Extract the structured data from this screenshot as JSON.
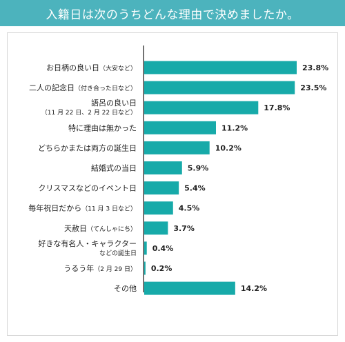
{
  "header": {
    "title": "入籍日は次のうちどんな理由で決めましたか。"
  },
  "colors": {
    "header_bg": "#4cb3bd",
    "bar": "#17aaa9",
    "axis": "#444444"
  },
  "chart_data": {
    "type": "bar",
    "orientation": "horizontal",
    "title": "入籍日は次のうちどんな理由で決めましたか。",
    "categories": [
      {
        "main": "お日柄の良い日",
        "note": "（大安など）"
      },
      {
        "main": "二人の記念日",
        "note": "（付き合った日など）"
      },
      {
        "main": "語呂の良い日",
        "sub": "（11 月 22 日、2 月 22 日など）"
      },
      {
        "main": "特に理由は無かった"
      },
      {
        "main": "どちらかまたは両方の誕生日"
      },
      {
        "main": "結婚式の当日"
      },
      {
        "main": "クリスマスなどのイベント日"
      },
      {
        "main": "毎年祝日だから",
        "note": "（11 月 3 日など）"
      },
      {
        "main": "天赦日",
        "note": "（てんしゃにち）"
      },
      {
        "main": "好きな有名人・キャラクター",
        "sub": "などの誕生日"
      },
      {
        "main": "うるう年",
        "note": "（2 月 29 日）"
      },
      {
        "main": "その他"
      }
    ],
    "values": [
      23.8,
      23.5,
      17.8,
      11.2,
      10.2,
      5.9,
      5.4,
      4.5,
      3.7,
      0.4,
      0.2,
      14.2
    ],
    "value_labels": [
      "23.8%",
      "23.5%",
      "17.8%",
      "11.2%",
      "10.2%",
      "5.9%",
      "5.4%",
      "4.5%",
      "3.7%",
      "0.4%",
      "0.2%",
      "14.2%"
    ],
    "xlim": [
      0,
      30
    ],
    "grid": false,
    "legend": "none"
  }
}
